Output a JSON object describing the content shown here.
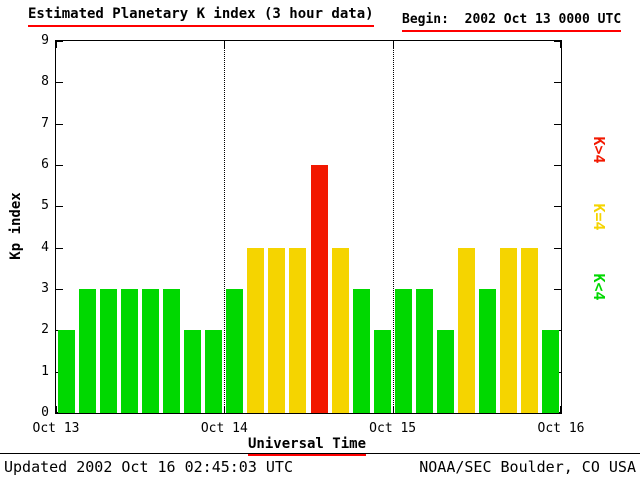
{
  "header": {
    "title": "Estimated Planetary K index (3 hour data)",
    "begin_label": "Begin:  2002 Oct 13 0000 UTC"
  },
  "footer": {
    "updated": "Updated 2002 Oct 16 02:45:03 UTC",
    "source": "NOAA/SEC Boulder, CO USA"
  },
  "chart_data": {
    "type": "bar",
    "title": "Estimated Planetary K index (3 hour data)",
    "begin": "2002 Oct 13 0000 UTC",
    "xlabel": "Universal Time",
    "ylabel": "Kp index",
    "ylim": [
      0,
      9
    ],
    "y_ticks": [
      0,
      1,
      2,
      3,
      4,
      5,
      6,
      7,
      8,
      9
    ],
    "x_ticks": [
      "Oct 13",
      "Oct 14",
      "Oct 15",
      "Oct 16"
    ],
    "bar_interval_hours": 3,
    "values": [
      2,
      3,
      3,
      3,
      3,
      3,
      2,
      2,
      3,
      4,
      4,
      4,
      6,
      4,
      3,
      2,
      3,
      3,
      2,
      4,
      3,
      4,
      4,
      2
    ],
    "colors": {
      "k_lt_4": "#00d800",
      "k_eq_4": "#f5d400",
      "k_gt_4": "#f21800"
    },
    "legend": [
      {
        "label": "K>4",
        "color": "#f21800"
      },
      {
        "label": "K=4",
        "color": "#f5d400"
      },
      {
        "label": "K<4",
        "color": "#00d800"
      }
    ],
    "gridlines": "dotted vertical lines at day boundaries",
    "legend_position": "right, rotated 90deg"
  }
}
